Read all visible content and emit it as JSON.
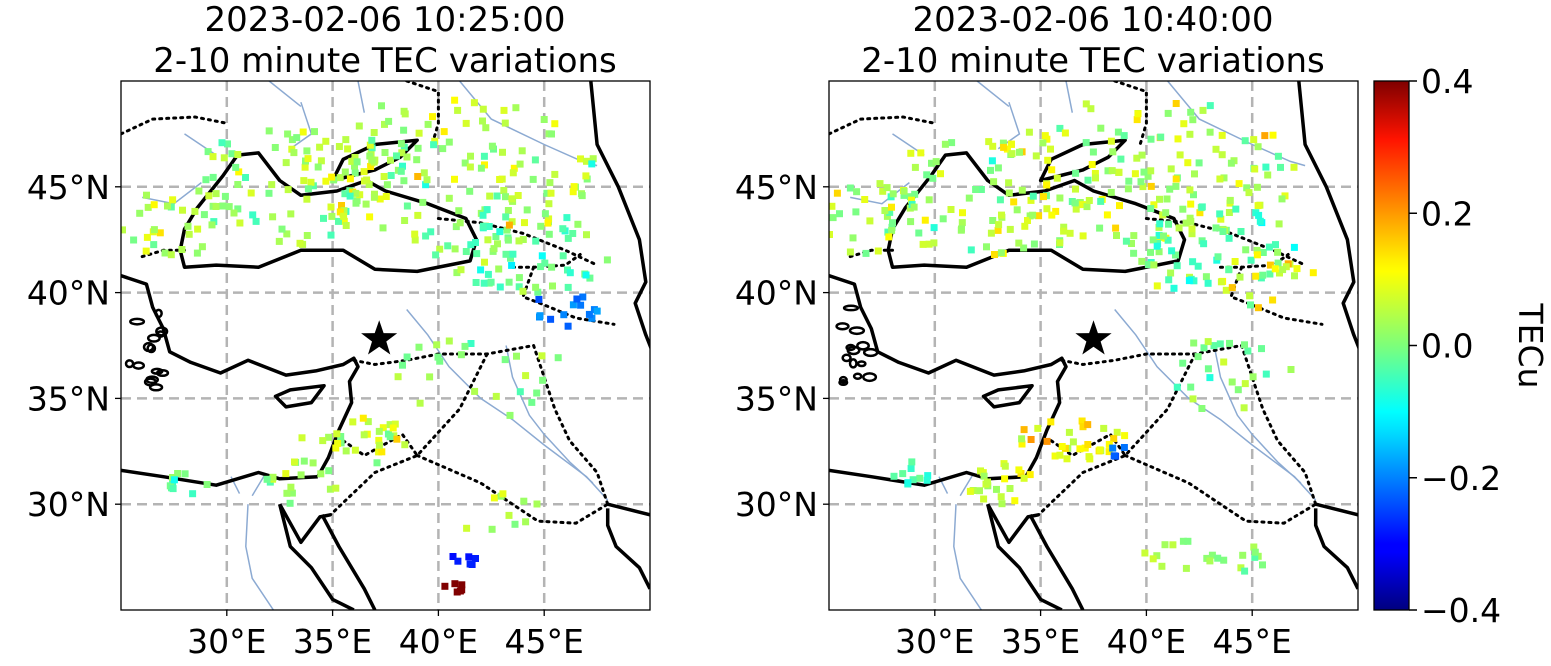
{
  "maps": [
    {
      "title_line1": "2023-02-06 10:25:00",
      "title_line2": "2-10 minute TEC variations",
      "epicenter": {
        "lon": 37.2,
        "lat": 37.8
      },
      "clusters": [
        {
          "lon": 40.5,
          "lat": 45.8,
          "r": 5,
          "n": 140,
          "v": 0.04,
          "s": 0.09
        },
        {
          "lon": 33.5,
          "lat": 45.0,
          "r": 4,
          "n": 90,
          "v": 0.02,
          "s": 0.08
        },
        {
          "lon": 44,
          "lat": 42,
          "r": 3,
          "n": 70,
          "v": -0.02,
          "s": 0.08
        },
        {
          "lon": 27.5,
          "lat": 43.5,
          "r": 2.5,
          "n": 35,
          "v": 0.05,
          "s": 0.1
        },
        {
          "lon": 46,
          "lat": 39.2,
          "r": 1.2,
          "n": 14,
          "v": -0.2,
          "s": 0.04
        },
        {
          "lon": 42,
          "lat": 36,
          "r": 3,
          "n": 25,
          "v": 0.02,
          "s": 0.06
        },
        {
          "lon": 36,
          "lat": 33,
          "r": 1.8,
          "n": 30,
          "v": 0.06,
          "s": 0.08
        },
        {
          "lon": 33.5,
          "lat": 31,
          "r": 1.5,
          "n": 18,
          "v": 0.02,
          "s": 0.06
        },
        {
          "lon": 28,
          "lat": 31,
          "r": 0.8,
          "n": 10,
          "v": -0.02,
          "s": 0.05
        },
        {
          "lon": 43,
          "lat": 29.5,
          "r": 1.5,
          "n": 10,
          "v": 0.05,
          "s": 0.05
        },
        {
          "lon": 41.2,
          "lat": 27.3,
          "r": 0.5,
          "n": 6,
          "v": -0.28,
          "s": 0.03
        },
        {
          "lon": 40.7,
          "lat": 26,
          "r": 0.4,
          "n": 6,
          "v": 0.42,
          "s": 0.0
        }
      ]
    },
    {
      "title_line1": "2023-02-06 10:40:00",
      "title_line2": "2-10 minute TEC variations",
      "epicenter": {
        "lon": 37.5,
        "lat": 37.8
      },
      "clusters": [
        {
          "lon": 40,
          "lat": 45.8,
          "r": 5,
          "n": 140,
          "v": 0.05,
          "s": 0.09
        },
        {
          "lon": 32.5,
          "lat": 44.5,
          "r": 4,
          "n": 90,
          "v": 0.03,
          "s": 0.09
        },
        {
          "lon": 43,
          "lat": 42,
          "r": 3,
          "n": 70,
          "v": -0.02,
          "s": 0.08
        },
        {
          "lon": 27,
          "lat": 43.5,
          "r": 2.5,
          "n": 30,
          "v": 0.04,
          "s": 0.08
        },
        {
          "lon": 43.5,
          "lat": 36,
          "r": 2.5,
          "n": 25,
          "v": 0.0,
          "s": 0.06
        },
        {
          "lon": 36.5,
          "lat": 33,
          "r": 1.8,
          "n": 32,
          "v": 0.1,
          "s": 0.08
        },
        {
          "lon": 33,
          "lat": 31,
          "r": 1.4,
          "n": 22,
          "v": 0.06,
          "s": 0.06
        },
        {
          "lon": 28.8,
          "lat": 31.5,
          "r": 0.8,
          "n": 10,
          "v": -0.04,
          "s": 0.06
        },
        {
          "lon": 38.7,
          "lat": 32.5,
          "r": 0.4,
          "n": 4,
          "v": -0.22,
          "s": 0.03
        },
        {
          "lon": 41.5,
          "lat": 27.5,
          "r": 1.2,
          "n": 10,
          "v": 0.03,
          "s": 0.05
        },
        {
          "lon": 44,
          "lat": 27.5,
          "r": 1.2,
          "n": 12,
          "v": 0.02,
          "s": 0.05
        },
        {
          "lon": 46,
          "lat": 40.5,
          "r": 2,
          "n": 20,
          "v": 0.1,
          "s": 0.1
        }
      ]
    }
  ],
  "axes": {
    "x_ticks": [
      "30°E",
      "35°E",
      "40°E",
      "45°E"
    ],
    "y_ticks": [
      "45°N",
      "40°N",
      "35°N",
      "30°N"
    ],
    "x_tick_values": [
      30,
      35,
      40,
      45
    ],
    "y_tick_values": [
      45,
      40,
      35,
      30
    ],
    "lon_range": [
      25,
      50
    ],
    "lat_range": [
      25,
      50
    ],
    "grid": "dashed"
  },
  "colorbar": {
    "label": "TECu",
    "ticks": [
      "0.4",
      "0.2",
      "0.0",
      "−0.2",
      "−0.4"
    ],
    "tick_values": [
      0.4,
      0.2,
      0.0,
      -0.2,
      -0.4
    ],
    "range": [
      -0.4,
      0.4
    ],
    "colormap": "jet"
  },
  "colors": {
    "coastline": "#000000",
    "rivers": "#8caad2",
    "grid": "#b4b4b4",
    "epicenter": "#000000"
  }
}
